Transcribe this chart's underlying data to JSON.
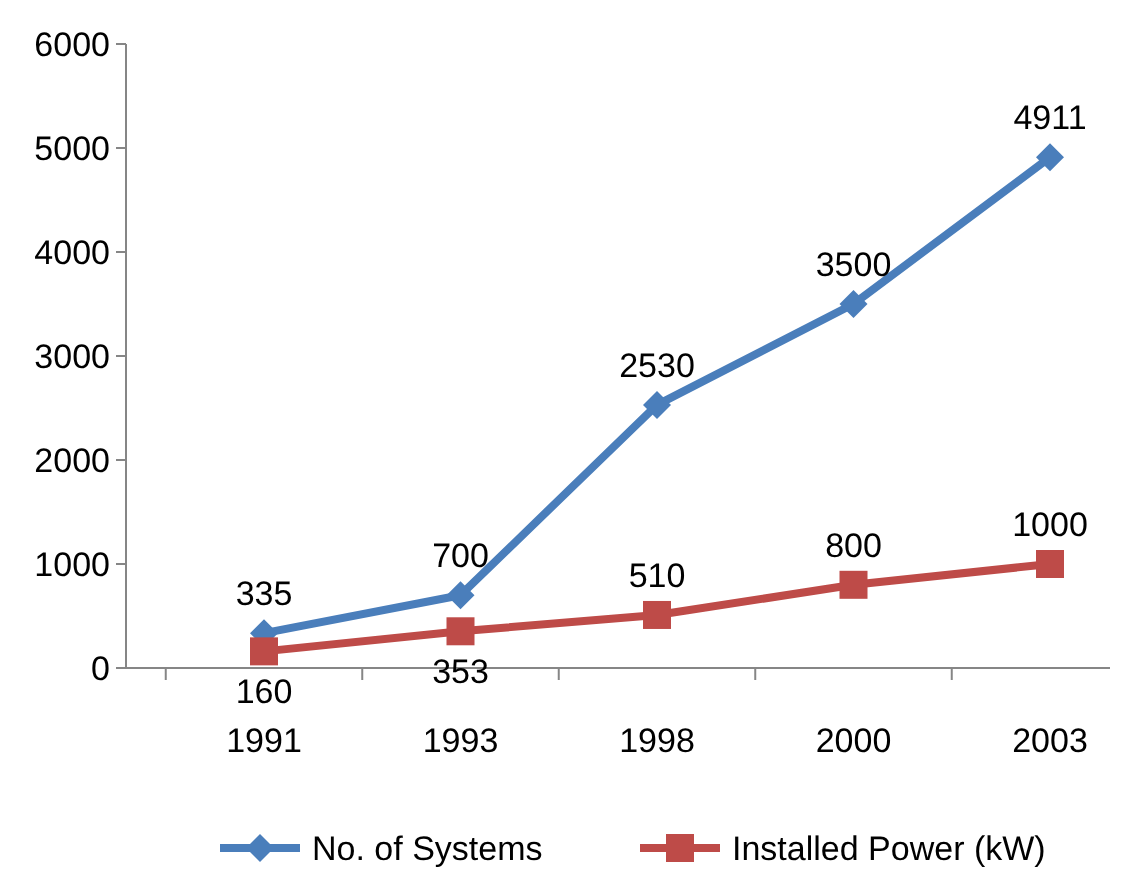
{
  "chart_data": {
    "type": "line",
    "categories": [
      "1991",
      "1993",
      "1998",
      "2000",
      "2003"
    ],
    "series": [
      {
        "name": "No. of Systems",
        "color": "#4a7ebb",
        "marker": "diamond",
        "values": [
          335,
          700,
          2530,
          3500,
          4911
        ]
      },
      {
        "name": "Installed Power (kW)",
        "color": "#be4b48",
        "marker": "square",
        "values": [
          160,
          353,
          510,
          800,
          1000
        ]
      }
    ],
    "ylim": [
      0,
      6000
    ],
    "yticks": [
      0,
      1000,
      2000,
      3000,
      4000,
      5000,
      6000
    ],
    "grid": false,
    "legend": "bottom",
    "data_labels": true
  }
}
